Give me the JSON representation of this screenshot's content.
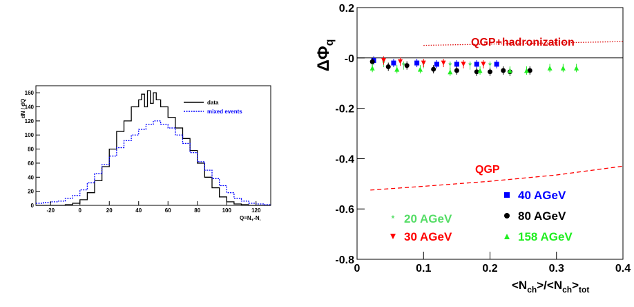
{
  "chart_data": [
    {
      "type": "line",
      "ylabel": "dN / dQ",
      "xlabel_main": "Q=N",
      "xlabel_sub1": "+",
      "xlabel_mid": "-N",
      "xlabel_sub2": "-",
      "xlim": [
        -30,
        130
      ],
      "ylim": [
        0,
        170
      ],
      "x_ticks": [
        -20,
        0,
        20,
        40,
        60,
        80,
        100,
        120
      ],
      "y_ticks": [
        0,
        20,
        40,
        60,
        80,
        100,
        120,
        140,
        160
      ],
      "legend_position": "top-right",
      "series": [
        {
          "name": "data",
          "color": "#000000",
          "style": "solid-step",
          "x": [
            -30,
            -25,
            -20,
            -15,
            -10,
            -5,
            0,
            5,
            10,
            15,
            20,
            25,
            30,
            35,
            40,
            42,
            44,
            46,
            48,
            50,
            52,
            55,
            60,
            65,
            70,
            75,
            80,
            85,
            90,
            95,
            100,
            105,
            110,
            115,
            120,
            125,
            130
          ],
          "y": [
            0,
            0,
            0,
            0,
            1,
            3,
            8,
            18,
            35,
            55,
            80,
            105,
            120,
            140,
            150,
            158,
            140,
            163,
            145,
            160,
            150,
            140,
            125,
            110,
            95,
            78,
            60,
            40,
            25,
            12,
            5,
            2,
            1,
            0,
            0,
            0,
            0
          ]
        },
        {
          "name": "mixed events",
          "color": "#0000ff",
          "style": "dotted-step",
          "x": [
            -30,
            -25,
            -20,
            -15,
            -10,
            -5,
            0,
            5,
            10,
            15,
            20,
            25,
            30,
            35,
            40,
            45,
            50,
            55,
            60,
            65,
            70,
            75,
            80,
            85,
            90,
            95,
            100,
            105,
            110,
            115,
            120,
            125,
            130
          ],
          "y": [
            3,
            4,
            5,
            6,
            10,
            14,
            22,
            32,
            45,
            58,
            70,
            82,
            92,
            100,
            108,
            115,
            120,
            115,
            110,
            100,
            88,
            75,
            62,
            50,
            38,
            28,
            18,
            10,
            6,
            3,
            2,
            1,
            0
          ]
        }
      ]
    },
    {
      "type": "scatter",
      "ylabel": "ΔΦ",
      "ylabel_sub": "q",
      "xlabel": "<N",
      "xlabel_sub1": "ch",
      "xlabel_mid": ">/<N",
      "xlabel_sub2": "ch",
      "xlabel_end": ">",
      "xlabel_sub3": "tot",
      "xlim": [
        0,
        0.4
      ],
      "ylim": [
        -0.8,
        0.2
      ],
      "x_ticks": [
        "0",
        "0.1",
        "0.2",
        "0.3",
        "0.4"
      ],
      "y_ticks": [
        "0.2",
        "-0",
        "-0.2",
        "-0.4",
        "-0.6",
        "-0.8"
      ],
      "x_tick_values": [
        0,
        0.1,
        0.2,
        0.3,
        0.4
      ],
      "y_tick_values": [
        0.2,
        0,
        -0.2,
        -0.4,
        -0.6,
        -0.8
      ],
      "annotations": [
        "QGP+hadronization",
        "QGP"
      ],
      "series": [
        {
          "name": "20 AGeV",
          "color": "#55dd66",
          "marker": "star",
          "x": [
            0.04,
            0.07,
            0.1,
            0.14,
            0.17,
            0.2
          ],
          "y": [
            -0.02,
            -0.03,
            -0.025,
            -0.03,
            -0.03,
            -0.03
          ]
        },
        {
          "name": "30 AGeV",
          "color": "#ff0000",
          "marker": "triangle-down",
          "x": [
            0.04,
            0.065,
            0.1,
            0.13,
            0.16,
            0.19
          ],
          "y": [
            -0.01,
            -0.015,
            -0.02,
            -0.02,
            -0.025,
            -0.025
          ]
        },
        {
          "name": "40 AGeV",
          "color": "#0000ff",
          "marker": "square",
          "x": [
            0.025,
            0.055,
            0.09,
            0.12,
            0.15,
            0.18,
            0.21
          ],
          "y": [
            -0.01,
            -0.02,
            -0.02,
            -0.025,
            -0.025,
            -0.025,
            -0.025
          ]
        },
        {
          "name": "80 AGeV",
          "color": "#000000",
          "marker": "circle",
          "x": [
            0.023,
            0.047,
            0.075,
            0.115,
            0.15,
            0.18,
            0.2,
            0.22,
            0.23,
            0.26
          ],
          "y": [
            -0.015,
            -0.035,
            -0.03,
            -0.045,
            -0.05,
            -0.055,
            -0.055,
            -0.05,
            -0.055,
            -0.05
          ]
        },
        {
          "name": "158 AGeV",
          "color": "#22ee22",
          "marker": "triangle-up",
          "x": [
            0.023,
            0.06,
            0.095,
            0.14,
            0.185,
            0.23,
            0.255,
            0.29,
            0.31,
            0.33
          ],
          "y": [
            -0.04,
            -0.045,
            -0.045,
            -0.055,
            -0.05,
            -0.05,
            -0.05,
            -0.04,
            -0.04,
            -0.04
          ]
        }
      ],
      "model_curves": [
        {
          "name": "QGP+hadronization",
          "color": "#dd0000",
          "style": "dotted",
          "x": [
            0.1,
            0.2,
            0.3,
            0.4
          ],
          "y": [
            0.05,
            0.055,
            0.06,
            0.065
          ]
        },
        {
          "name": "QGP",
          "color": "#ff0000",
          "style": "dashed",
          "x": [
            0.02,
            0.1,
            0.2,
            0.3,
            0.4
          ],
          "y": [
            -0.525,
            -0.51,
            -0.49,
            -0.465,
            -0.43
          ]
        }
      ]
    }
  ]
}
